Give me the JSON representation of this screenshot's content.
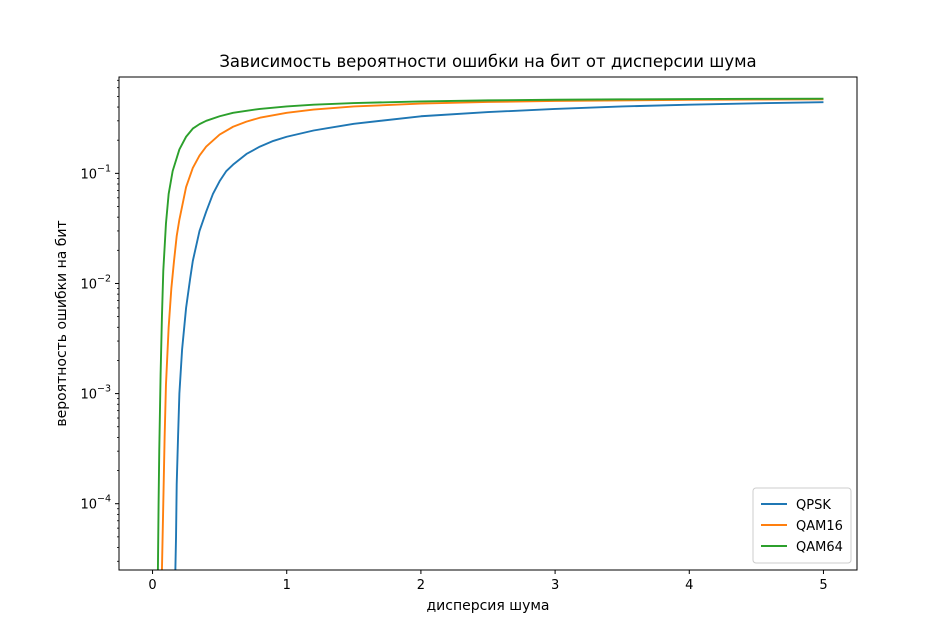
{
  "chart_data": {
    "type": "line",
    "title": "Зависимость вероятности ошибки на бит от дисперсии шума",
    "xlabel": "дисперсия шума",
    "ylabel": "вероятность ошибки на бит",
    "xscale": "linear",
    "yscale": "log",
    "xlim": [
      -0.25,
      5.25
    ],
    "ylim": [
      2.5e-05,
      0.75
    ],
    "x_ticks": [
      0,
      1,
      2,
      3,
      4,
      5
    ],
    "x_tick_labels": [
      "0",
      "1",
      "2",
      "3",
      "4",
      "5"
    ],
    "y_ticks": [
      0.0001,
      0.001,
      0.01,
      0.1
    ],
    "y_tick_labels": [
      {
        "base": "10",
        "exp": "−4"
      },
      {
        "base": "10",
        "exp": "−3"
      },
      {
        "base": "10",
        "exp": "−2"
      },
      {
        "base": "10",
        "exp": "−1"
      }
    ],
    "grid": false,
    "legend_position": "lower-right",
    "series": [
      {
        "name": "QPSK",
        "color": "#1f77b4",
        "x": [
          0.17,
          0.175,
          0.18,
          0.19,
          0.2,
          0.22,
          0.25,
          0.28,
          0.3,
          0.35,
          0.4,
          0.45,
          0.5,
          0.55,
          0.6,
          0.7,
          0.8,
          0.9,
          1.0,
          1.2,
          1.5,
          2.0,
          2.5,
          3.0,
          3.5,
          4.0,
          4.5,
          5.0
        ],
        "y": [
          2.5e-05,
          5e-05,
          0.00015,
          0.0004,
          0.001,
          0.0025,
          0.006,
          0.011,
          0.016,
          0.03,
          0.045,
          0.065,
          0.085,
          0.105,
          0.12,
          0.15,
          0.175,
          0.197,
          0.215,
          0.245,
          0.282,
          0.33,
          0.36,
          0.385,
          0.405,
          0.42,
          0.433,
          0.443
        ]
      },
      {
        "name": "QAM16",
        "color": "#ff7f0e",
        "x": [
          0.07,
          0.08,
          0.09,
          0.1,
          0.12,
          0.14,
          0.16,
          0.18,
          0.2,
          0.25,
          0.3,
          0.35,
          0.4,
          0.5,
          0.6,
          0.7,
          0.8,
          1.0,
          1.2,
          1.5,
          2.0,
          2.5,
          3.0,
          3.5,
          4.0,
          4.5,
          5.0
        ],
        "y": [
          2.5e-05,
          0.0001,
          0.0004,
          0.0012,
          0.004,
          0.009,
          0.016,
          0.027,
          0.038,
          0.075,
          0.112,
          0.145,
          0.175,
          0.225,
          0.265,
          0.295,
          0.32,
          0.355,
          0.38,
          0.405,
          0.43,
          0.445,
          0.455,
          0.46,
          0.465,
          0.468,
          0.47
        ]
      },
      {
        "name": "QAM64",
        "color": "#2ca02c",
        "x": [
          0.04,
          0.045,
          0.05,
          0.06,
          0.07,
          0.08,
          0.1,
          0.12,
          0.15,
          0.2,
          0.25,
          0.3,
          0.35,
          0.4,
          0.5,
          0.6,
          0.7,
          0.8,
          1.0,
          1.2,
          1.5,
          2.0,
          2.5,
          3.0,
          3.5,
          4.0,
          4.5,
          5.0
        ],
        "y": [
          2.5e-05,
          0.0001,
          0.0003,
          0.0015,
          0.005,
          0.013,
          0.035,
          0.065,
          0.105,
          0.165,
          0.215,
          0.255,
          0.28,
          0.3,
          0.33,
          0.355,
          0.37,
          0.385,
          0.405,
          0.42,
          0.435,
          0.45,
          0.46,
          0.466,
          0.47,
          0.473,
          0.475,
          0.477
        ]
      }
    ]
  }
}
